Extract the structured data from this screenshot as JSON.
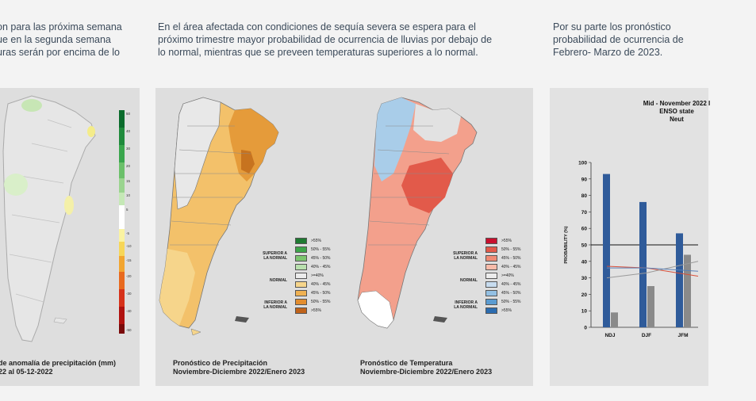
{
  "columns": [
    {
      "lines": [
        "on para las próxima semana",
        "ue en la segunda semana",
        "uras serán por encima de lo"
      ]
    },
    {
      "lines": [
        "En el área afectada con condiciones de sequía severa se espera para el",
        "próximo trimestre mayor probabilidad de ocurrencia de lluvias por debajo de",
        "lo normal, mientras que se preveen temperaturas superiores a lo normal."
      ]
    },
    {
      "lines": [
        "Por su parte los pronóstico",
        "probabilidad de ocurrencia de",
        "Febrero- Marzo de 2023."
      ]
    }
  ],
  "panel1": {
    "caption": [
      "de anomalía de precipitación (mm)",
      "22 al 05-12-2022"
    ],
    "scale": [
      "50",
      "40",
      "30",
      "20",
      "15",
      "10",
      "5",
      "-5",
      "-10",
      "-15",
      "-20",
      "-30",
      "-40",
      "-50"
    ]
  },
  "panel2": {
    "precip": {
      "caption": [
        "Pronóstico de Precipitación",
        "Noviembre-Diciembre 2022/Enero 2023"
      ],
      "legend_groups": [
        [
          "SUPERIOR A",
          "LA NORMAL"
        ],
        [
          "NORMAL"
        ],
        [
          "INFERIOR A",
          "LA NORMAL"
        ]
      ],
      "legend": [
        {
          "label": ">55%",
          "color": "#1f7a32"
        },
        {
          "label": "50% - 55%",
          "color": "#3ea54a"
        },
        {
          "label": "45% - 50%",
          "color": "#7cc56f"
        },
        {
          "label": "40% - 45%",
          "color": "#b9e0ae"
        },
        {
          "label": ">=40%",
          "color": "#ececec"
        },
        {
          "label": "40% - 45%",
          "color": "#f6d58b"
        },
        {
          "label": "45% - 50%",
          "color": "#efb152"
        },
        {
          "label": "50% - 55%",
          "color": "#e38d2e"
        },
        {
          "label": ">55%",
          "color": "#c0631a"
        }
      ]
    },
    "temp": {
      "caption": [
        "Pronóstico de Temperatura",
        "Noviembre-Diciembre 2022/Enero 2023"
      ],
      "legend_groups": [
        [
          "SUPERIOR A",
          "LA NORMAL"
        ],
        [
          "NORMAL"
        ],
        [
          "INFERIOR A",
          "LA NORMAL"
        ]
      ],
      "legend": [
        {
          "label": ">55%",
          "color": "#c8102e"
        },
        {
          "label": "50% - 55%",
          "color": "#e25a4a"
        },
        {
          "label": "45% - 50%",
          "color": "#f08a74"
        },
        {
          "label": "40% - 45%",
          "color": "#f7bba9"
        },
        {
          "label": ">=40%",
          "color": "#ececec"
        },
        {
          "label": "40% - 45%",
          "color": "#c7dcef"
        },
        {
          "label": "45% - 50%",
          "color": "#93c0e3"
        },
        {
          "label": "50% - 55%",
          "color": "#5a9bd1"
        },
        {
          "label": ">55%",
          "color": "#2b6cb0"
        }
      ]
    }
  },
  "panel3": {
    "title": [
      "Mid - November 2022 I",
      "ENSO state",
      "Neut"
    ],
    "chart_data": {
      "type": "bar",
      "categories": [
        "NDJ",
        "DJF",
        "JFM"
      ],
      "series": [
        {
          "values": [
            93,
            76,
            57
          ],
          "color": "#2f5b9a"
        },
        {
          "values": [
            9,
            25,
            44
          ],
          "color": "#8a8a8a"
        }
      ],
      "ylabel": "PROBABILITY (%)",
      "ylim": [
        0,
        100
      ],
      "yticks": [
        0,
        10,
        20,
        30,
        40,
        50,
        60,
        70,
        80,
        90,
        100
      ]
    }
  }
}
